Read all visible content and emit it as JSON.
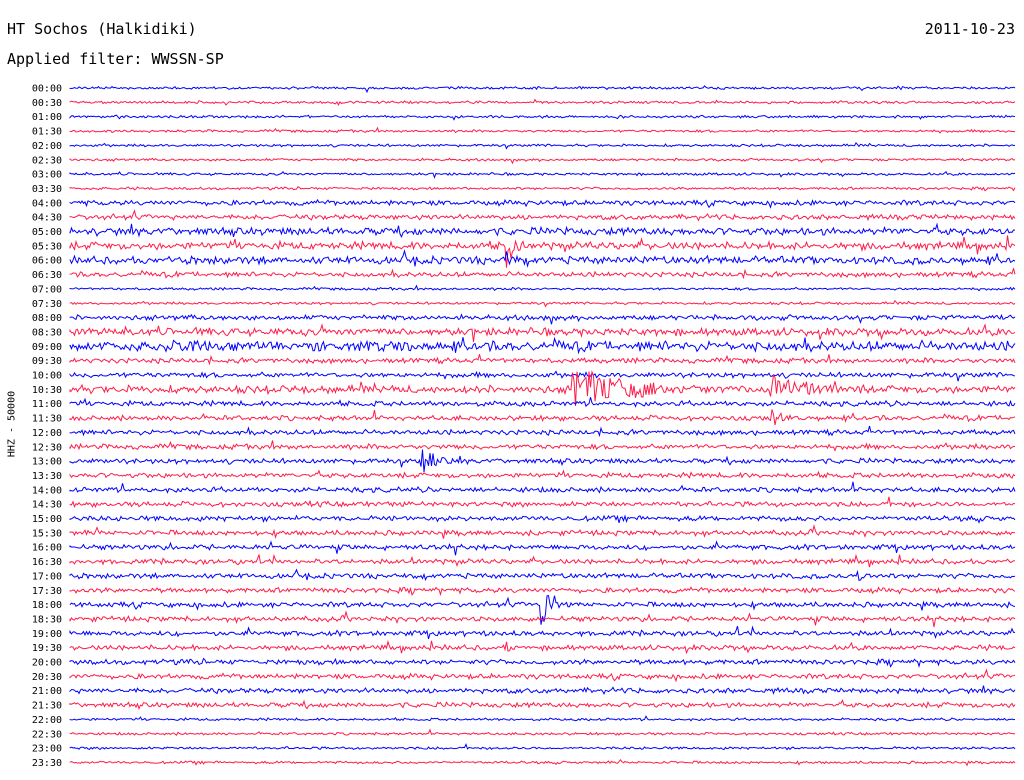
{
  "header": {
    "station": "HT Sochos (Halkidiki)",
    "date": "2011-10-23",
    "filter": "Applied filter: WWSSN-SP"
  },
  "yaxis_label": "HHZ - 50000",
  "colors": {
    "a": "#0000ff",
    "b": "#ff1c4a",
    "text": "#000000"
  },
  "chart_data": {
    "type": "line",
    "title": "",
    "xlabel": "",
    "ylabel": "HHZ - 50000",
    "grid": false,
    "legend": "none",
    "row_minutes": 30,
    "time_labels": [
      "00:00",
      "00:30",
      "01:00",
      "01:30",
      "02:00",
      "02:30",
      "03:00",
      "03:30",
      "04:00",
      "04:30",
      "05:00",
      "05:30",
      "06:00",
      "06:30",
      "07:00",
      "07:30",
      "08:00",
      "08:30",
      "09:00",
      "09:30",
      "10:00",
      "10:30",
      "11:00",
      "11:30",
      "12:00",
      "12:30",
      "13:00",
      "13:30",
      "14:00",
      "14:30",
      "15:00",
      "15:30",
      "16:00",
      "16:30",
      "17:00",
      "17:30",
      "18:00",
      "18:30",
      "19:00",
      "19:30",
      "20:00",
      "20:30",
      "21:00",
      "21:30",
      "22:00",
      "22:30",
      "23:00",
      "23:30"
    ],
    "series": [
      {
        "values": [
          [
            "00:00",
            1
          ],
          [
            "00:30",
            1
          ],
          [
            "01:00",
            1
          ],
          [
            "01:30",
            1
          ],
          [
            "02:00",
            1
          ],
          [
            "02:30",
            1
          ],
          [
            "03:00",
            1
          ],
          [
            "03:30",
            1
          ],
          [
            "04:00",
            2
          ],
          [
            "04:30",
            2
          ],
          [
            "05:00",
            3
          ],
          [
            "05:30",
            3
          ],
          [
            "06:00",
            3
          ],
          [
            "06:30",
            2
          ],
          [
            "07:00",
            1
          ],
          [
            "07:30",
            1
          ],
          [
            "08:00",
            2
          ],
          [
            "08:30",
            3
          ],
          [
            "09:00",
            4
          ],
          [
            "09:30",
            2
          ],
          [
            "10:00",
            2
          ],
          [
            "10:30",
            3
          ],
          [
            "11:00",
            2
          ],
          [
            "11:30",
            2
          ],
          [
            "12:00",
            2
          ],
          [
            "12:30",
            2
          ],
          [
            "13:00",
            2
          ],
          [
            "13:30",
            2
          ],
          [
            "14:00",
            2
          ],
          [
            "14:30",
            2
          ],
          [
            "15:00",
            2
          ],
          [
            "15:30",
            2
          ],
          [
            "16:00",
            2
          ],
          [
            "16:30",
            2
          ],
          [
            "17:00",
            2
          ],
          [
            "17:30",
            2
          ],
          [
            "18:00",
            2
          ],
          [
            "18:30",
            2
          ],
          [
            "19:00",
            2
          ],
          [
            "19:30",
            2
          ],
          [
            "20:00",
            2
          ],
          [
            "20:30",
            2
          ],
          [
            "21:00",
            2
          ],
          [
            "21:30",
            2
          ],
          [
            "22:00",
            1
          ],
          [
            "22:30",
            1
          ],
          [
            "23:00",
            1
          ],
          [
            "23:30",
            1
          ]
        ]
      }
    ],
    "events": [
      {
        "row": "05:30",
        "pos": 0.46,
        "amp": 34,
        "len": 0.03
      },
      {
        "row": "06:00",
        "pos": 0.46,
        "amp": 18,
        "len": 0.02
      },
      {
        "row": "09:00",
        "pos": 0.1,
        "amp": 8,
        "len": 0.28
      },
      {
        "row": "10:30",
        "pos": 0.53,
        "amp": 28,
        "len": 0.2
      },
      {
        "row": "10:30",
        "pos": 0.74,
        "amp": 24,
        "len": 0.12
      },
      {
        "row": "11:30",
        "pos": 0.74,
        "amp": 16,
        "len": 0.03
      },
      {
        "row": "13:00",
        "pos": 0.37,
        "amp": 30,
        "len": 0.04
      },
      {
        "row": "17:00",
        "pos": 0.83,
        "amp": 10,
        "len": 0.03
      },
      {
        "row": "18:00",
        "pos": 0.495,
        "amp": 36,
        "len": 0.04
      },
      {
        "row": "19:30",
        "pos": 0.46,
        "amp": 8,
        "len": 0.03
      }
    ]
  }
}
